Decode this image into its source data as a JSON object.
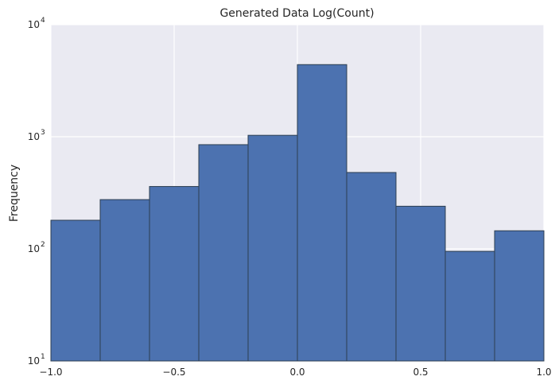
{
  "chart_data": {
    "type": "bar",
    "title": "Generated Data Log(Count)",
    "xlabel": "",
    "ylabel": "Frequency",
    "y_scale": "log",
    "xlim": [
      -1.0,
      1.0
    ],
    "ylim": [
      10,
      10000
    ],
    "grid": true,
    "bins": [
      {
        "x0": -1.0,
        "x1": -0.8,
        "value": 180
      },
      {
        "x0": -0.8,
        "x1": -0.6,
        "value": 275
      },
      {
        "x0": -0.6,
        "x1": -0.4,
        "value": 360
      },
      {
        "x0": -0.4,
        "x1": -0.2,
        "value": 850
      },
      {
        "x0": -0.2,
        "x1": 0.0,
        "value": 1030
      },
      {
        "x0": 0.0,
        "x1": 0.2,
        "value": 4400
      },
      {
        "x0": 0.2,
        "x1": 0.4,
        "value": 480
      },
      {
        "x0": 0.4,
        "x1": 0.6,
        "value": 240
      },
      {
        "x0": 0.6,
        "x1": 0.8,
        "value": 95
      },
      {
        "x0": 0.8,
        "x1": 1.0,
        "value": 145
      }
    ],
    "x_ticks": [
      {
        "value": -1.0,
        "label": "−1.0"
      },
      {
        "value": -0.5,
        "label": "−0.5"
      },
      {
        "value": 0.0,
        "label": "0.0"
      },
      {
        "value": 0.5,
        "label": "0.5"
      },
      {
        "value": 1.0,
        "label": "1.0"
      }
    ],
    "y_ticks": [
      {
        "value": 10,
        "base": "10",
        "exp": "1"
      },
      {
        "value": 100,
        "base": "10",
        "exp": "2"
      },
      {
        "value": 1000,
        "base": "10",
        "exp": "3"
      },
      {
        "value": 10000,
        "base": "10",
        "exp": "4"
      }
    ],
    "colors": {
      "background": "#eaeaf2",
      "bar_fill": "#4c72b0",
      "bar_edge": "#2c3e50",
      "grid": "#ffffff"
    }
  }
}
